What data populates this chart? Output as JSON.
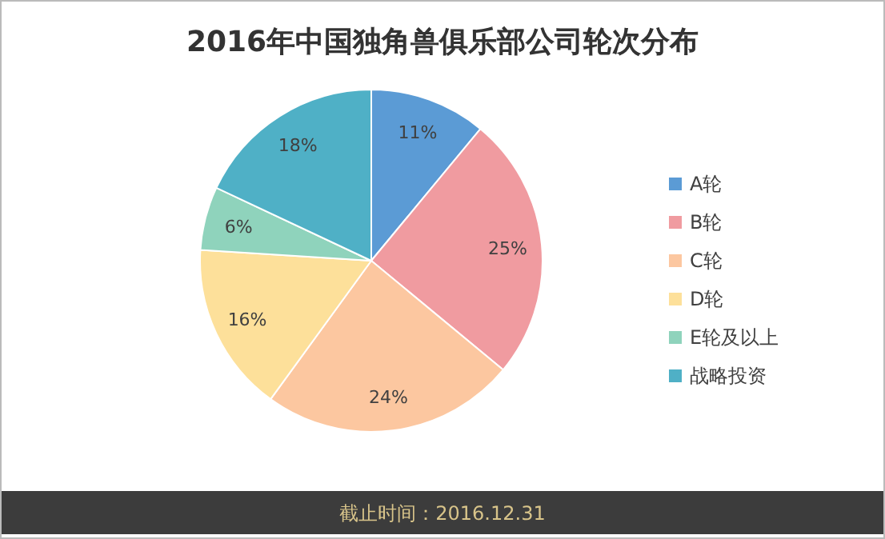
{
  "chart_data": {
    "type": "pie",
    "title": "2016年中国独角兽俱乐部公司轮次分布",
    "categories": [
      "A轮",
      "B轮",
      "C轮",
      "D轮",
      "E轮及以上",
      "战略投资"
    ],
    "values": [
      11,
      25,
      24,
      16,
      6,
      18
    ],
    "value_labels": [
      "11%",
      "25%",
      "24%",
      "16%",
      "6%",
      "18%"
    ],
    "colors": [
      "#5b9bd5",
      "#f09ba0",
      "#fcc7a0",
      "#fde09a",
      "#8fd3bc",
      "#4fb0c6"
    ],
    "legend": "right",
    "annotations": [
      "截止时间：2016.12.31"
    ]
  }
}
